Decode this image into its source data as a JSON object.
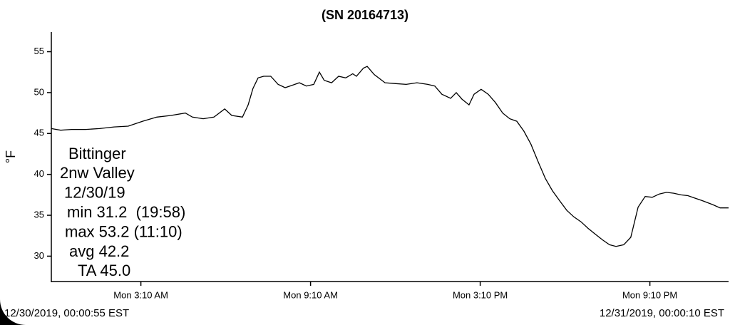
{
  "chart_data": {
    "type": "line",
    "title": "(SN 20164713)",
    "y_label": "°F",
    "annotation": [
      "Bittinger",
      "2nw Valley",
      "12/30/19",
      "min 31.2  (19:58)",
      "max 53.2 (11:10)",
      "avg 42.2",
      "TA 45.0"
    ],
    "start_label": "12/30/2019, 00:00:55 EST",
    "end_label": "12/31/2019, 00:00:10 EST",
    "xlim": [
      0,
      24
    ],
    "ylim": [
      26.9,
      57.4
    ],
    "xticks": [
      {
        "value": 3.1667,
        "label": "Mon 3:10 AM"
      },
      {
        "value": 9.1667,
        "label": "Mon 9:10 AM"
      },
      {
        "value": 15.1667,
        "label": "Mon 3:10 PM"
      },
      {
        "value": 21.1667,
        "label": "Mon 9:10 PM"
      }
    ],
    "yticks": [
      30,
      35,
      40,
      45,
      50,
      55
    ],
    "series": [
      {
        "color": "#000000",
        "x": [
          0,
          0.33,
          0.71,
          1.21,
          1.71,
          2.22,
          2.72,
          3.23,
          3.73,
          4.23,
          4.74,
          4.99,
          5.37,
          5.75,
          6.13,
          6.38,
          6.76,
          6.96,
          7.13,
          7.31,
          7.51,
          7.76,
          8.02,
          8.27,
          8.52,
          8.77,
          9.02,
          9.28,
          9.48,
          9.65,
          9.91,
          10.16,
          10.41,
          10.66,
          10.79,
          11.04,
          11.17,
          11.42,
          11.8,
          12.18,
          12.55,
          12.93,
          13.31,
          13.56,
          13.81,
          14.12,
          14.32,
          14.52,
          14.77,
          14.95,
          15.2,
          15.45,
          15.7,
          15.96,
          16.21,
          16.46,
          16.71,
          16.96,
          17.22,
          17.47,
          17.72,
          17.97,
          18.23,
          18.48,
          18.73,
          18.98,
          19.23,
          19.49,
          19.74,
          19.97,
          20.24,
          20.49,
          20.75,
          21.0,
          21.25,
          21.5,
          21.75,
          22.01,
          22.26,
          22.51,
          22.76,
          23.01,
          23.39,
          23.65,
          23.95
        ],
        "values": [
          45.6,
          45.4,
          45.5,
          45.5,
          45.6,
          45.8,
          45.9,
          46.5,
          47.0,
          47.2,
          47.5,
          47.0,
          46.8,
          47.0,
          48.0,
          47.2,
          47.0,
          48.5,
          50.5,
          51.8,
          52.0,
          52.0,
          51.0,
          50.6,
          50.9,
          51.2,
          50.8,
          51.0,
          52.5,
          51.5,
          51.2,
          52.0,
          51.8,
          52.3,
          52.0,
          53.0,
          53.2,
          52.2,
          51.2,
          51.1,
          51.0,
          51.2,
          51.0,
          50.8,
          49.8,
          49.3,
          50.0,
          49.2,
          48.5,
          49.8,
          50.4,
          49.8,
          48.8,
          47.5,
          46.8,
          46.5,
          45.3,
          43.7,
          41.5,
          39.5,
          38.0,
          36.8,
          35.6,
          34.8,
          34.2,
          33.4,
          32.7,
          32.0,
          31.4,
          31.2,
          31.4,
          32.3,
          36.0,
          37.3,
          37.2,
          37.6,
          37.8,
          37.7,
          37.5,
          37.4,
          37.1,
          36.8,
          36.3,
          35.9,
          35.9
        ]
      }
    ]
  }
}
